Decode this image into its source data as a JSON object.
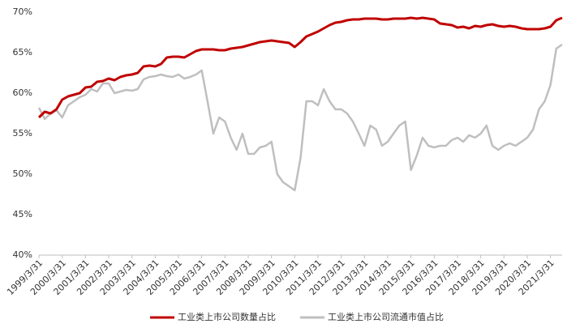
{
  "chart_data": {
    "type": "line",
    "x": [
      "1999/3/31",
      "1999/6/30",
      "1999/9/30",
      "1999/12/31",
      "2000/3/31",
      "2000/6/30",
      "2000/9/30",
      "2000/12/31",
      "2001/3/31",
      "2001/6/30",
      "2001/9/30",
      "2001/12/31",
      "2002/3/31",
      "2002/6/30",
      "2002/9/30",
      "2002/12/31",
      "2003/3/31",
      "2003/6/30",
      "2003/9/30",
      "2003/12/31",
      "2004/3/31",
      "2004/6/30",
      "2004/9/30",
      "2004/12/31",
      "2005/3/31",
      "2005/6/30",
      "2005/9/30",
      "2005/12/31",
      "2006/3/31",
      "2006/6/30",
      "2006/9/30",
      "2006/12/31",
      "2007/3/31",
      "2007/6/30",
      "2007/9/30",
      "2007/12/31",
      "2008/3/31",
      "2008/6/30",
      "2008/9/30",
      "2008/12/31",
      "2009/3/31",
      "2009/6/30",
      "2009/9/30",
      "2009/12/31",
      "2010/3/31",
      "2010/6/30",
      "2010/9/30",
      "2010/12/31",
      "2011/3/31",
      "2011/6/30",
      "2011/9/30",
      "2011/12/31",
      "2012/3/31",
      "2012/6/30",
      "2012/9/30",
      "2012/12/31",
      "2013/3/31",
      "2013/6/30",
      "2013/9/30",
      "2013/12/31",
      "2014/3/31",
      "2014/6/30",
      "2014/9/30",
      "2014/12/31",
      "2015/3/31",
      "2015/6/30",
      "2015/9/30",
      "2015/12/31",
      "2016/3/31",
      "2016/6/30",
      "2016/9/30",
      "2016/12/31",
      "2017/3/31",
      "2017/6/30",
      "2017/9/30",
      "2017/12/31",
      "2018/3/31",
      "2018/6/30",
      "2018/9/30",
      "2018/12/31",
      "2019/3/31",
      "2019/6/30",
      "2019/9/30",
      "2019/12/31",
      "2020/3/31",
      "2020/6/30",
      "2020/9/30",
      "2020/12/31",
      "2021/3/31",
      "2021/6/30",
      "2021/9/30"
    ],
    "series": [
      {
        "name": "工业类上市公司数量占比",
        "color": "#c00000",
        "values": [
          57.0,
          57.7,
          57.5,
          58.0,
          59.2,
          59.6,
          59.8,
          60.0,
          60.7,
          60.8,
          61.4,
          61.5,
          61.8,
          61.6,
          62.0,
          62.2,
          62.3,
          62.5,
          63.3,
          63.4,
          63.3,
          63.6,
          64.4,
          64.5,
          64.5,
          64.4,
          64.8,
          65.2,
          65.4,
          65.4,
          65.4,
          65.3,
          65.3,
          65.5,
          65.6,
          65.7,
          65.9,
          66.1,
          66.3,
          66.4,
          66.5,
          66.4,
          66.3,
          66.2,
          65.7,
          66.3,
          67.0,
          67.3,
          67.6,
          68.0,
          68.4,
          68.7,
          68.8,
          69.0,
          69.1,
          69.1,
          69.2,
          69.2,
          69.2,
          69.1,
          69.1,
          69.2,
          69.2,
          69.2,
          69.3,
          69.2,
          69.3,
          69.2,
          69.1,
          68.6,
          68.5,
          68.4,
          68.1,
          68.2,
          68.0,
          68.3,
          68.2,
          68.4,
          68.5,
          68.3,
          68.2,
          68.3,
          68.2,
          68.0,
          67.9,
          67.9,
          67.9,
          68.0,
          68.2,
          69.0,
          69.3
        ]
      },
      {
        "name": "工业类上市公司流通市值占比",
        "color": "#bfbfbf",
        "values": [
          58.2,
          56.8,
          57.5,
          57.9,
          57.0,
          58.5,
          59.0,
          59.5,
          59.8,
          60.5,
          60.2,
          61.2,
          61.2,
          60.0,
          60.2,
          60.4,
          60.3,
          60.5,
          61.7,
          62.0,
          62.1,
          62.3,
          62.1,
          62.0,
          62.3,
          61.8,
          62.0,
          62.3,
          62.8,
          59.0,
          55.0,
          57.0,
          56.5,
          54.5,
          53.0,
          55.0,
          52.5,
          52.5,
          53.3,
          53.5,
          54.0,
          50.0,
          49.0,
          48.5,
          48.0,
          52.0,
          59.0,
          59.0,
          58.5,
          60.5,
          59.0,
          58.0,
          58.0,
          57.5,
          56.5,
          55.0,
          53.5,
          56.0,
          55.5,
          53.5,
          54.0,
          55.0,
          56.0,
          56.5,
          50.5,
          52.3,
          54.5,
          53.5,
          53.3,
          53.5,
          53.5,
          54.2,
          54.5,
          54.0,
          54.8,
          54.5,
          55.0,
          56.0,
          53.5,
          53.0,
          53.5,
          53.8,
          53.5,
          54.0,
          54.5,
          55.5,
          58.0,
          59.0,
          61.0,
          65.5,
          66.0
        ]
      }
    ],
    "xlim": [
      "1999/3/31",
      "2021/9/30"
    ],
    "xticks": [
      "1999/3/31",
      "2000/3/31",
      "2001/3/31",
      "2002/3/31",
      "2003/3/31",
      "2004/3/31",
      "2005/3/31",
      "2006/3/31",
      "2007/3/31",
      "2008/3/31",
      "2009/3/31",
      "2010/3/31",
      "2011/3/31",
      "2012/3/31",
      "2013/3/31",
      "2014/3/31",
      "2015/3/31",
      "2016/3/31",
      "2017/3/31",
      "2018/3/31",
      "2019/3/31",
      "2020/3/31",
      "2021/3/31"
    ],
    "ylim": [
      40,
      70
    ],
    "yticks": [
      {
        "value": 40,
        "label": "40%"
      },
      {
        "value": 45,
        "label": "45%"
      },
      {
        "value": 50,
        "label": "50%"
      },
      {
        "value": 55,
        "label": "55%"
      },
      {
        "value": 60,
        "label": "60%"
      },
      {
        "value": 65,
        "label": "65%"
      },
      {
        "value": 70,
        "label": "70%"
      }
    ],
    "legend": "bottom"
  }
}
